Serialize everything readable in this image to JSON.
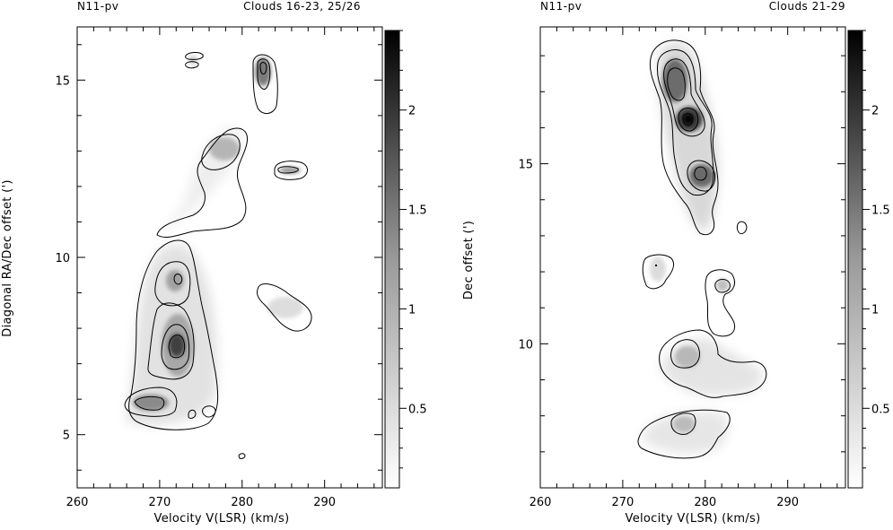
{
  "chart_data": [
    {
      "type": "heatmap",
      "header_left": "N11-pv",
      "header_right": "Clouds 16-23, 25/26",
      "xlabel": "Velocity V(LSR) (km/s)",
      "ylabel": "Diagonal RA/Dec offset (')",
      "xlim": [
        260,
        297
      ],
      "ylim": [
        3.5,
        16.5
      ],
      "x_ticks": [
        260,
        270,
        280,
        290
      ],
      "y_ticks": [
        5,
        10,
        15
      ],
      "colorbar": {
        "range": [
          0.1,
          2.4
        ],
        "ticks": [
          0.5,
          1,
          1.5,
          2
        ],
        "labels": [
          "0.5",
          "1",
          "1.5",
          "2"
        ]
      },
      "peaks": [
        {
          "x": 271.5,
          "y": 7.4,
          "peak": 2.0
        },
        {
          "x": 270.5,
          "y": 9.4,
          "peak": 1.3
        },
        {
          "x": 268.0,
          "y": 5.9,
          "peak": 1.6
        },
        {
          "x": 281.3,
          "y": 15.3,
          "peak": 1.6
        },
        {
          "x": 277.0,
          "y": 13.0,
          "peak": 1.2
        },
        {
          "x": 284.0,
          "y": 12.4,
          "peak": 0.9
        },
        {
          "x": 285.0,
          "y": 8.3,
          "peak": 0.6
        },
        {
          "x": 273.3,
          "y": 15.6,
          "peak": 0.7
        }
      ]
    },
    {
      "type": "heatmap",
      "header_left": "N11-pv",
      "header_right": "Clouds 21-29",
      "xlabel": "Velocity V(LSR) (km/s)",
      "ylabel": "Dec offset (')",
      "xlim": [
        260,
        297
      ],
      "ylim": [
        6,
        18.8
      ],
      "x_ticks": [
        260,
        270,
        280,
        290
      ],
      "y_ticks": [
        10,
        15
      ],
      "colorbar": {
        "range": [
          0.1,
          2.4
        ],
        "ticks": [
          0.5,
          1,
          1.5,
          2
        ],
        "labels": [
          "0.5",
          "1",
          "1.5",
          "2"
        ]
      },
      "peaks": [
        {
          "x": 276.8,
          "y": 16.3,
          "peak": 2.4
        },
        {
          "x": 275.8,
          "y": 17.4,
          "peak": 1.8
        },
        {
          "x": 278.3,
          "y": 14.8,
          "peak": 1.6
        },
        {
          "x": 276.5,
          "y": 9.7,
          "peak": 1.1
        },
        {
          "x": 276.8,
          "y": 7.8,
          "peak": 1.0
        },
        {
          "x": 273.5,
          "y": 12.3,
          "peak": 1.0
        },
        {
          "x": 281.0,
          "y": 11.7,
          "peak": 1.0
        },
        {
          "x": 283.5,
          "y": 13.3,
          "peak": 0.5
        }
      ]
    }
  ]
}
